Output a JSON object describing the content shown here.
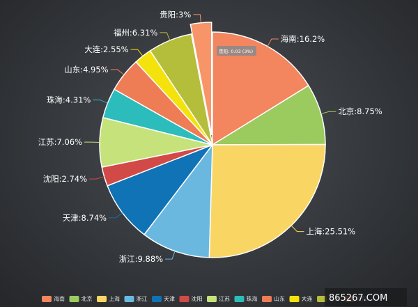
{
  "chart_data": {
    "type": "pie",
    "title": "",
    "slices": [
      {
        "name": "海南",
        "value": 16.2,
        "label": "海南:16.2%",
        "color": "#f3855f"
      },
      {
        "name": "北京",
        "value": 8.75,
        "label": "北京:8.75%",
        "color": "#9bca5f"
      },
      {
        "name": "上海",
        "value": 25.51,
        "label": "上海:25.51%",
        "color": "#f9d664"
      },
      {
        "name": "浙江",
        "value": 9.88,
        "label": "浙江:9.88%",
        "color": "#6ab8e0"
      },
      {
        "name": "天津",
        "value": 8.74,
        "label": "天津:8.74%",
        "color": "#0f73b6"
      },
      {
        "name": "沈阳",
        "value": 2.74,
        "label": "沈阳:2.74%",
        "color": "#d24a47"
      },
      {
        "name": "江苏",
        "value": 7.06,
        "label": "江苏:7.06%",
        "color": "#c6e37b"
      },
      {
        "name": "珠海",
        "value": 4.31,
        "label": "珠海:4.31%",
        "color": "#2cbcbb"
      },
      {
        "name": "山东",
        "value": 4.95,
        "label": "山东:4.95%",
        "color": "#ee7c55"
      },
      {
        "name": "大连",
        "value": 2.55,
        "label": "大连:2.55%",
        "color": "#f4e20c"
      },
      {
        "name": "福州",
        "value": 6.31,
        "label": "福州:6.31%",
        "color": "#b5be3a"
      },
      {
        "name": "贵阳",
        "value": 3,
        "label": "贵阳:3%",
        "color": "#f79569",
        "exploded": true
      }
    ],
    "tooltip": "贵阳: 0.03 (3%)",
    "legend_position": "bottom"
  },
  "watermark": "865267.COM"
}
